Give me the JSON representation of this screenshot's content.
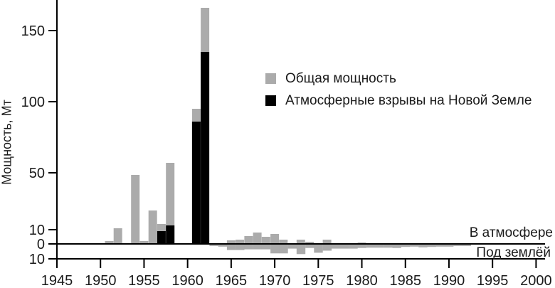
{
  "figure": {
    "ylabel": "Мощность, Мт",
    "annotation_above": "В атмосфере",
    "annotation_below": "Под землёй"
  },
  "legend": [
    {
      "label": "Общая мощность",
      "color": "#ababab"
    },
    {
      "label": "Атмосферные взрывы на Новой Земле",
      "color": "#000000"
    }
  ],
  "chart_data": {
    "type": "bar",
    "title": "",
    "xlabel": "",
    "ylabel": "Мощность, Мт",
    "units": "Мт",
    "xlim": [
      1945,
      2000
    ],
    "x_ticks": [
      1945,
      1950,
      1955,
      1960,
      1965,
      1970,
      1975,
      1980,
      1985,
      1990,
      1995,
      2000
    ],
    "y_ticks_atmosphere": [
      150,
      100,
      50,
      10,
      0
    ],
    "y_tick_underground": 10,
    "grid": false,
    "legend_position": "upper-middle-right",
    "colors": {
      "total": "#ababab",
      "novaya_zemlya": "#000000",
      "underground": "#ababab",
      "axis": "#000000"
    },
    "series": [
      {
        "name": "Общая мощность",
        "role": "atmospheric-total",
        "points": [
          [
            1951,
            2
          ],
          [
            1952,
            11
          ],
          [
            1954,
            48.5
          ],
          [
            1955,
            2
          ],
          [
            1956,
            23.5
          ],
          [
            1957,
            14
          ],
          [
            1958,
            57
          ],
          [
            1961,
            95
          ],
          [
            1962,
            166
          ],
          [
            1965,
            2.5
          ],
          [
            1966,
            3
          ],
          [
            1967,
            5.5
          ],
          [
            1968,
            8
          ],
          [
            1969,
            5
          ],
          [
            1970,
            7
          ],
          [
            1971,
            3
          ],
          [
            1973,
            3
          ],
          [
            1974,
            1.5
          ],
          [
            1976,
            3
          ],
          [
            1980,
            1
          ]
        ]
      },
      {
        "name": "Атмосферные взрывы на Новой Земле",
        "role": "novaya-zemlya-atmospheric",
        "points": [
          [
            1957,
            9
          ],
          [
            1958,
            13
          ],
          [
            1961,
            86
          ],
          [
            1962,
            135
          ]
        ]
      },
      {
        "name": "Под землёй",
        "role": "underground",
        "points": [
          [
            1963,
            1.5
          ],
          [
            1964,
            2
          ],
          [
            1965,
            4.5
          ],
          [
            1966,
            4.5
          ],
          [
            1967,
            4
          ],
          [
            1968,
            4
          ],
          [
            1969,
            4
          ],
          [
            1970,
            7
          ],
          [
            1971,
            7
          ],
          [
            1972,
            3.5
          ],
          [
            1973,
            7.5
          ],
          [
            1974,
            3
          ],
          [
            1975,
            6.5
          ],
          [
            1976,
            5
          ],
          [
            1977,
            3.5
          ],
          [
            1978,
            3.5
          ],
          [
            1979,
            3.5
          ],
          [
            1980,
            3
          ],
          [
            1981,
            2.8
          ],
          [
            1982,
            2.8
          ],
          [
            1983,
            2.8
          ],
          [
            1984,
            3
          ],
          [
            1985,
            2.2
          ],
          [
            1986,
            2
          ],
          [
            1987,
            2.5
          ],
          [
            1988,
            2.2
          ],
          [
            1989,
            2
          ],
          [
            1990,
            2
          ],
          [
            1991,
            1.5
          ],
          [
            1992,
            1.5
          ]
        ]
      }
    ]
  }
}
